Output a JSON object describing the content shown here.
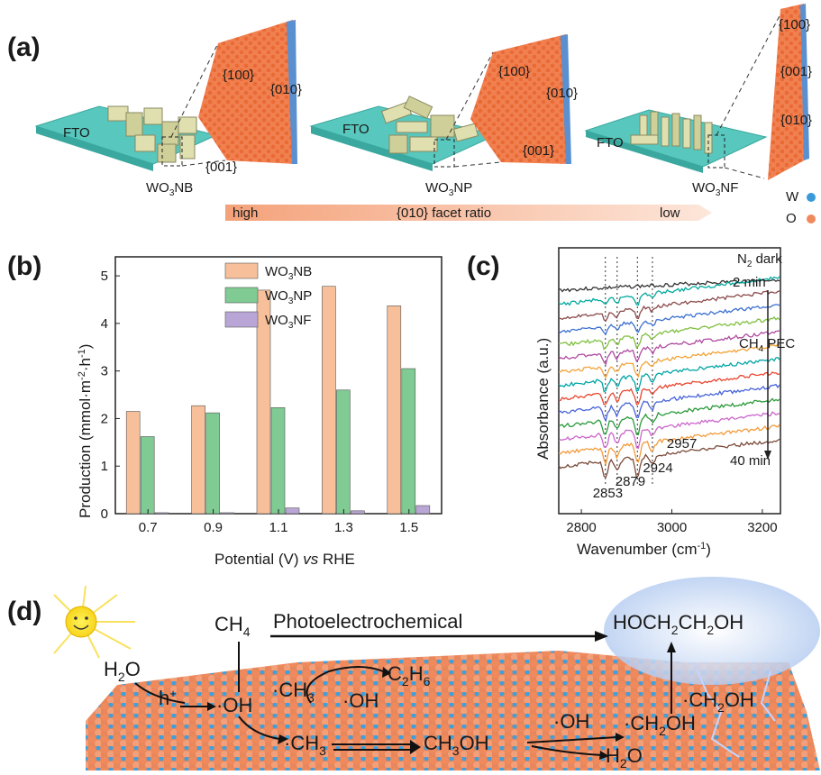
{
  "panel_a": {
    "label": "(a)",
    "samples": [
      {
        "fto": "FTO",
        "name_main": "WO",
        "name_sub": "3",
        "name_tail": "NB",
        "facet_top": "{100}",
        "facet_mid": "{010}",
        "facet_bottom": "{001}"
      },
      {
        "fto": "FTO",
        "name_main": "WO",
        "name_sub": "3",
        "name_tail": "NP",
        "facet_top": "{100}",
        "facet_mid": "{010}",
        "facet_bottom": "{001}"
      },
      {
        "fto": "FTO",
        "name_main": "WO",
        "name_sub": "3",
        "name_tail": "NF",
        "facet_top": "{100}",
        "facet_mid": "{001}",
        "facet_bottom": "{010}"
      }
    ],
    "arrow_left": "high",
    "arrow_center": "{010} facet ratio",
    "arrow_right": "low",
    "legend": [
      {
        "label": "W",
        "color": "#3a9ad9"
      },
      {
        "label": "O",
        "color": "#f08a5d"
      }
    ]
  },
  "panel_b": {
    "label": "(b)",
    "ylabel_main": "Production (mmol·m",
    "ylabel_sup1": "-2",
    "ylabel_mid": "·h",
    "ylabel_sup2": "-1",
    "ylabel_end": ")",
    "xlabel_main": "Potential (V) ",
    "xlabel_italic": "vs",
    "xlabel_end": " RHE"
  },
  "chart_data": {
    "type": "bar",
    "categories": [
      "0.7",
      "0.9",
      "1.1",
      "1.3",
      "1.5"
    ],
    "series": [
      {
        "name": "WO3NB",
        "label_main": "WO",
        "label_sub": "3",
        "label_tail": "NB",
        "color": "#f7c09a",
        "values": [
          2.15,
          2.27,
          4.7,
          4.78,
          4.37
        ]
      },
      {
        "name": "WO3NP",
        "label_main": "WO",
        "label_sub": "3",
        "label_tail": "NP",
        "color": "#7fcb93",
        "values": [
          1.62,
          2.12,
          2.23,
          2.6,
          3.05
        ]
      },
      {
        "name": "WO3NF",
        "label_main": "WO",
        "label_sub": "3",
        "label_tail": "NF",
        "color": "#b9a6d6",
        "values": [
          0.02,
          0.02,
          0.12,
          0.06,
          0.17
        ]
      }
    ],
    "ylim": [
      0,
      5.4
    ],
    "yticks": [
      "0",
      "1",
      "2",
      "3",
      "4",
      "5"
    ],
    "grid": false,
    "legend_position": "top-center"
  },
  "panel_c": {
    "label": "(c)",
    "ylabel": "Absorbance (a.u.)",
    "xlabel_main": "Wavenumber (cm",
    "xlabel_sup": "-1",
    "xlabel_end": ")",
    "xticks": [
      "2800",
      "3000",
      "3200"
    ],
    "xlim": [
      2750,
      3240
    ],
    "n2_main": "N",
    "n2_sub": "2",
    "n2_tail": " dark",
    "time_start": "2 min",
    "time_end": "40 min",
    "ch4_main": "CH",
    "ch4_sub": "4",
    "ch4_tail": " PEC",
    "peaks": [
      "2853",
      "2879",
      "2924",
      "2957"
    ],
    "peak_positions": [
      2853,
      2879,
      2924,
      2957
    ],
    "spectra_colors": [
      "#333333",
      "#00a99d",
      "#8b4a4a",
      "#3b6fd0",
      "#7fbf3f",
      "#b04aa0",
      "#f2a33a",
      "#00a5a5",
      "#e8452f",
      "#4763d9",
      "#2b9a3a",
      "#cc66cc",
      "#f29a3a",
      "#7a4a3a"
    ]
  },
  "panel_d": {
    "label": "(d)",
    "title": "Photoelectrochemical",
    "ch4_main": "CH",
    "ch4_sub": "4",
    "h2o_main": "H",
    "h2o_sub": "2",
    "h2o_tail": "O",
    "hplus": "h",
    "hplus_sup": "+",
    "oh": "·OH",
    "ch3_main": "·CH",
    "ch3_sub": "3",
    "c2h6_main": "C",
    "c2h6_sub1": "2",
    "c2h6_mid": "H",
    "c2h6_sub2": "6",
    "ch3oh_main": "CH",
    "ch3oh_sub": "3",
    "ch3oh_tail": "OH",
    "ch2oh_main": "·CH",
    "ch2oh_sub": "2",
    "ch2oh_tail": "OH",
    "eg_main": "HOCH",
    "eg_sub1": "2",
    "eg_mid": "CH",
    "eg_sub2": "2",
    "eg_tail": "OH"
  }
}
